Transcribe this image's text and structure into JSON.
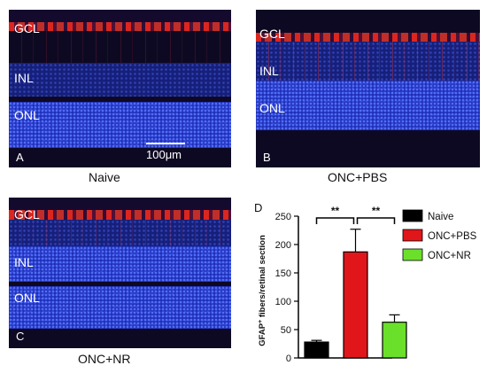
{
  "panels": {
    "a": {
      "letter": "A",
      "caption": "Naive",
      "layers": [
        "GCL",
        "INL",
        "ONL"
      ],
      "scalebar": "100μm"
    },
    "b": {
      "letter": "B",
      "caption": "ONC+PBS",
      "layers": [
        "GCL",
        "INL",
        "ONL"
      ]
    },
    "c": {
      "letter": "C",
      "caption": "ONC+NR",
      "layers": [
        "GCL",
        "INL",
        "ONL"
      ]
    }
  },
  "colors": {
    "naive": "#000000",
    "onc_pbs": "#e0161b",
    "onc_nr": "#6be02a",
    "nuclei": "#1f2fb8",
    "gfap": "#e6281e"
  },
  "chart_data": {
    "type": "bar",
    "panel_letter": "D",
    "categories": [
      "Naive",
      "ONC+PBS",
      "ONC+NR"
    ],
    "values": [
      28,
      187,
      63
    ],
    "error": [
      3,
      40,
      13
    ],
    "ylabel": "GFAP+ fibers/retinal section",
    "ylabel_main": "GFAP",
    "ylabel_sup": "+",
    "ylabel_rest": " fibers/retinal section",
    "ylim": [
      0,
      250
    ],
    "yticks": [
      0,
      50,
      100,
      150,
      200,
      250
    ],
    "significance": [
      {
        "from": 0,
        "to": 1,
        "label": "**"
      },
      {
        "from": 1,
        "to": 2,
        "label": "**"
      }
    ],
    "legend": [
      {
        "label": "Naive",
        "color": "#000000"
      },
      {
        "label": "ONC+PBS",
        "color": "#e0161b"
      },
      {
        "label": "ONC+NR",
        "color": "#6be02a"
      }
    ],
    "legend_position": "right",
    "grid": false
  }
}
